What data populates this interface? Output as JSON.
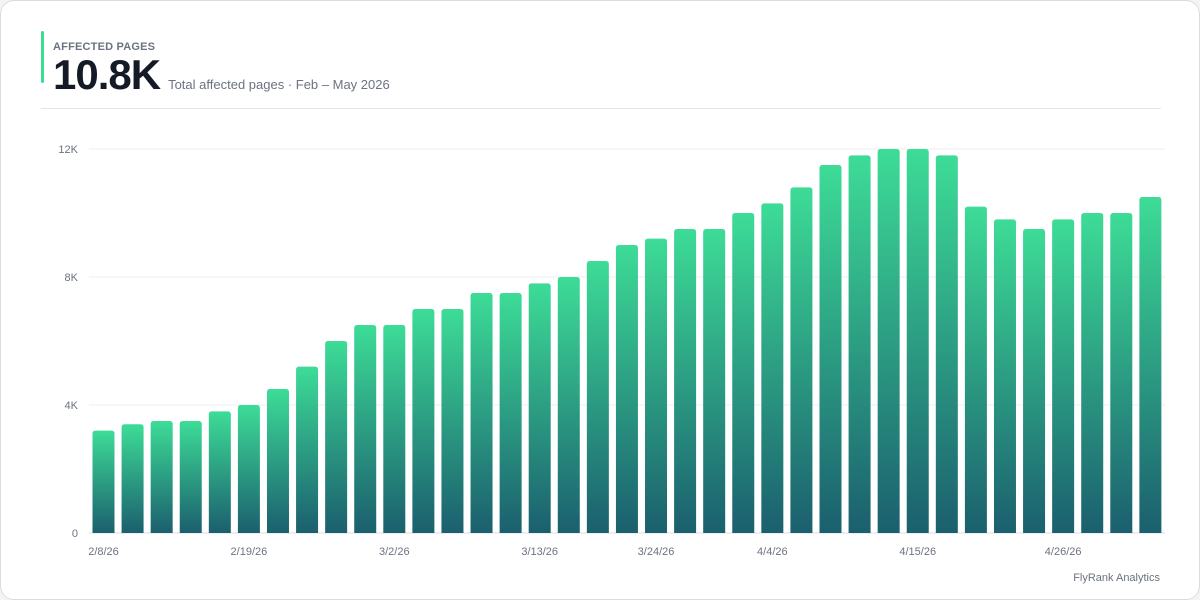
{
  "header": {
    "label": "AFFECTED PAGES",
    "value": "10.8K",
    "subtitle": "Total affected pages · Feb – May 2026"
  },
  "footer": {
    "brand": "FlyRank Analytics"
  },
  "colors": {
    "accent": "#3ddc97",
    "bar_top": "#3ddc97",
    "bar_bottom": "#1b5f6e",
    "grid": "#eceef1"
  },
  "chart_data": {
    "type": "bar",
    "title": "",
    "xlabel": "",
    "ylabel": "",
    "ylim": [
      0,
      12000
    ],
    "y_ticks": [
      {
        "value": 0,
        "label": "0"
      },
      {
        "value": 4000,
        "label": "4K"
      },
      {
        "value": 8000,
        "label": "8K"
      },
      {
        "value": 12000,
        "label": "12K"
      }
    ],
    "grid": true,
    "legend": "none",
    "x_tick_labels": [
      {
        "index": 0,
        "label": "2/8/26"
      },
      {
        "index": 5,
        "label": "2/19/26"
      },
      {
        "index": 10,
        "label": "3/2/26"
      },
      {
        "index": 15,
        "label": "3/13/26"
      },
      {
        "index": 19,
        "label": "3/24/26"
      },
      {
        "index": 23,
        "label": "4/4/26"
      },
      {
        "index": 28,
        "label": "4/15/26"
      },
      {
        "index": 33,
        "label": "4/26/26"
      }
    ],
    "values": [
      3200,
      3400,
      3500,
      3500,
      3800,
      4000,
      4500,
      5200,
      6000,
      6500,
      6500,
      7000,
      7000,
      7500,
      7500,
      7800,
      8000,
      8500,
      9000,
      9200,
      9500,
      9500,
      10000,
      10300,
      10800,
      11500,
      11800,
      12000,
      12000,
      11800,
      10200,
      9800,
      9500,
      9800,
      10000,
      10000,
      10500
    ]
  }
}
